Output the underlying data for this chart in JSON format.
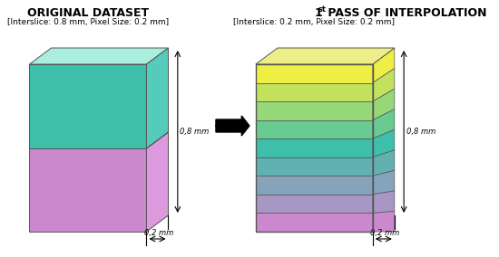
{
  "title_left": "ORIGINAL DATASET",
  "title_right": "1ˢᵗ PASS OF INTERPOLATION",
  "subtitle_left": "[Interslice: 0.8 mm, Pixel Size: 0.2 mm]",
  "subtitle_right": "[Interslice: 0.2 mm, Pixel Size: 0.2 mm]",
  "color_teal": "#3dbfaa",
  "color_violet": "#cc88cc",
  "color_yellow": "#eeee44",
  "background": "#ffffff",
  "label_08": "0,8 mm",
  "label_02": "0,2 mm"
}
